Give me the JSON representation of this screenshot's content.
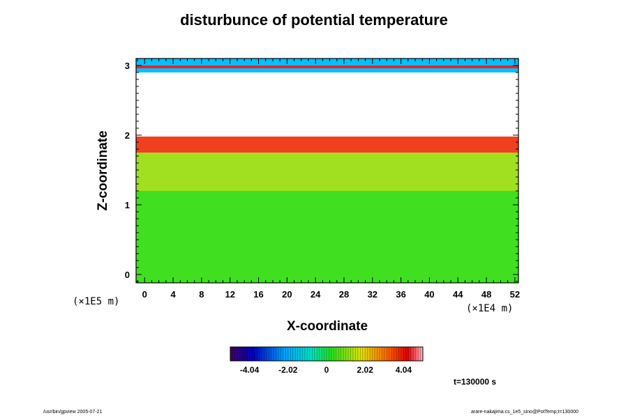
{
  "header": {
    "title": "disturbunce of potential temperature"
  },
  "footer": {
    "left": "/usr/bin/gpview 2005-07-21",
    "right": "arare-nakajima:cs_1e5_sino@PotTemp;t=130000"
  },
  "time_label": "t=130000 s",
  "chart_data": {
    "type": "heatmap",
    "title": "disturbunce of potential temperature",
    "xlabel": "X-coordinate",
    "ylabel": "Z-coordinate",
    "x_unit": "(×1E4 m)",
    "y_unit": "(×1E5 m)",
    "xlim": [
      -1.2,
      52.5
    ],
    "ylim": [
      -0.12,
      3.1
    ],
    "x_ticks": [
      0,
      4,
      8,
      12,
      16,
      20,
      24,
      28,
      32,
      36,
      40,
      44,
      48,
      52
    ],
    "y_ticks": [
      0,
      1,
      2,
      3
    ],
    "x_minor_step": 1,
    "y_minor_step": 0.1,
    "colorbar": {
      "tick_labels": [
        "-4.04",
        "-2.02",
        "0",
        "2.02",
        "4.04"
      ],
      "tick_values": [
        -4.04,
        -2.02,
        0,
        2.02,
        4.04
      ],
      "range": [
        -5.05,
        5.05
      ],
      "n_levels": 80
    },
    "field_bands": [
      {
        "z": [
          -0.12,
          1.2
        ],
        "value": 0.3,
        "desc_color": "#40e020"
      },
      {
        "z": [
          1.2,
          1.75
        ],
        "value": 1.0,
        "desc_color": "#a0e020"
      },
      {
        "z": [
          1.75,
          1.98
        ],
        "value": 4.0,
        "desc_color": "#f04020"
      },
      {
        "z": [
          1.98,
          2.9
        ],
        "value": 6.0,
        "desc_color": "#ffffff"
      },
      {
        "z": [
          2.9,
          3.1
        ],
        "value": -1.5,
        "desc_color": "#00c0ff"
      }
    ],
    "grid": false
  }
}
